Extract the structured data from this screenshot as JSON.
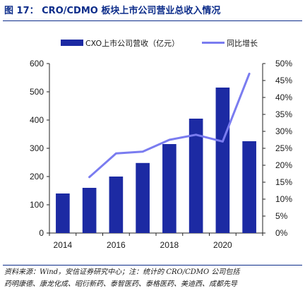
{
  "figure": {
    "title": "图 17： CRO/CDMO 板块上市公司营业总收入情况",
    "source_line1": "资料来源：Wind，安信证券研究中心；注：统计的 CRO/CDMO 公司包括",
    "source_line2": "药明康德、康龙化成、昭衍新药、泰智医药、泰格医药、美迪西、成都先导"
  },
  "chart_data": {
    "type": "bar+line",
    "title": "",
    "xlabel": "",
    "ylabel": "",
    "categories": [
      "2014",
      "2015",
      "2016",
      "2017",
      "2018",
      "2019",
      "2020",
      "2021"
    ],
    "x_tick_labels": [
      "2014",
      "2016",
      "2018",
      "2020"
    ],
    "series": [
      {
        "name": "CXO上市公司营收（亿元）",
        "type": "bar",
        "axis": "left",
        "color": "#1c2aa3",
        "values": [
          140,
          160,
          200,
          248,
          315,
          405,
          515,
          325
        ]
      },
      {
        "name": "同比增长",
        "type": "line",
        "axis": "right",
        "color": "#7a7cf0",
        "values": [
          null,
          16.5,
          23.5,
          24,
          27.5,
          29,
          27,
          47
        ]
      }
    ],
    "y_left": {
      "ylim": [
        0,
        600
      ],
      "ticks": [
        "0",
        "100",
        "200",
        "300",
        "400",
        "500",
        "600"
      ]
    },
    "y_right": {
      "ylim": [
        0,
        50
      ],
      "ticks": [
        "0%",
        "5%",
        "10%",
        "15%",
        "20%",
        "25%",
        "30%",
        "35%",
        "40%",
        "45%",
        "50%"
      ]
    },
    "legend_position": "top",
    "grid": false
  }
}
